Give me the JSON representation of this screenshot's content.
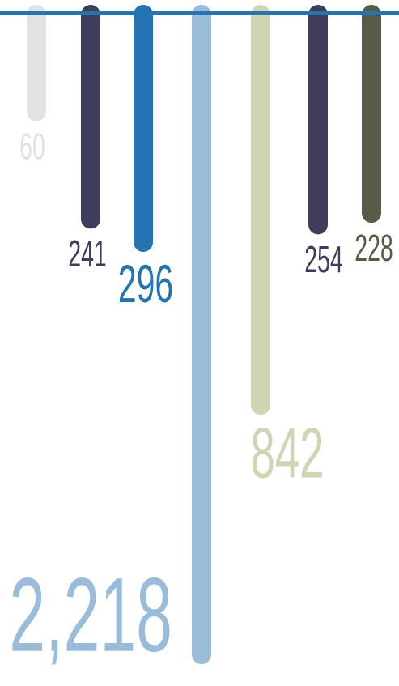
{
  "chart_data": {
    "type": "hanging-bar",
    "values": [
      60,
      241,
      296,
      2218,
      842,
      254,
      228
    ],
    "value_labels": [
      "60",
      "241",
      "296",
      "2,218",
      "842",
      "254",
      "228"
    ],
    "colors": [
      "#e2e2e2",
      "#3e3d5b",
      "#2473b3",
      "#9abcd9",
      "#cfd4b3",
      "#3e3d5b",
      "#575c49"
    ],
    "line_color": "#2473b3"
  }
}
